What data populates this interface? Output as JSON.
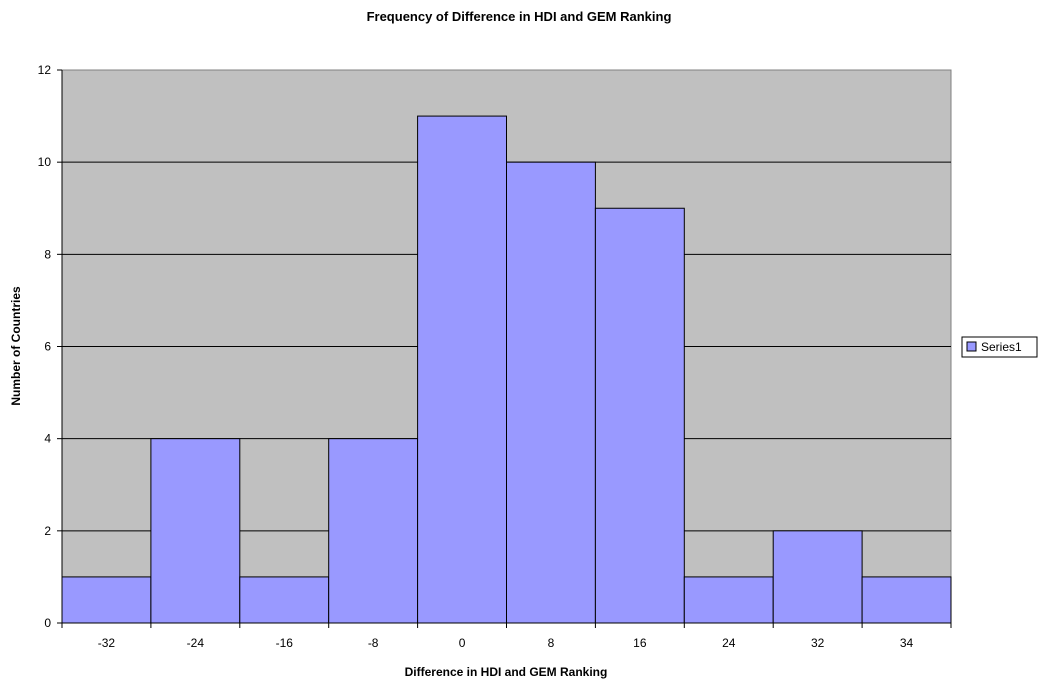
{
  "chart_data": {
    "type": "bar",
    "title": "Frequency of Difference in HDI and GEM Ranking",
    "xlabel": "Difference in HDI and GEM Ranking",
    "ylabel": "Number of Countries",
    "categories": [
      "-32",
      "-24",
      "-16",
      "-8",
      "0",
      "8",
      "16",
      "24",
      "32",
      "34"
    ],
    "series": [
      {
        "name": "Series1",
        "values": [
          1,
          4,
          1,
          4,
          11,
          10,
          9,
          1,
          2,
          1
        ]
      }
    ],
    "ylim": [
      0,
      12
    ],
    "yticks": [
      0,
      2,
      4,
      6,
      8,
      10,
      12
    ],
    "grid": true,
    "legend_position": "right",
    "colors": {
      "bar_fill": "#9999FF",
      "plot_background": "#C0C0C0",
      "gridline": "#000000"
    }
  }
}
